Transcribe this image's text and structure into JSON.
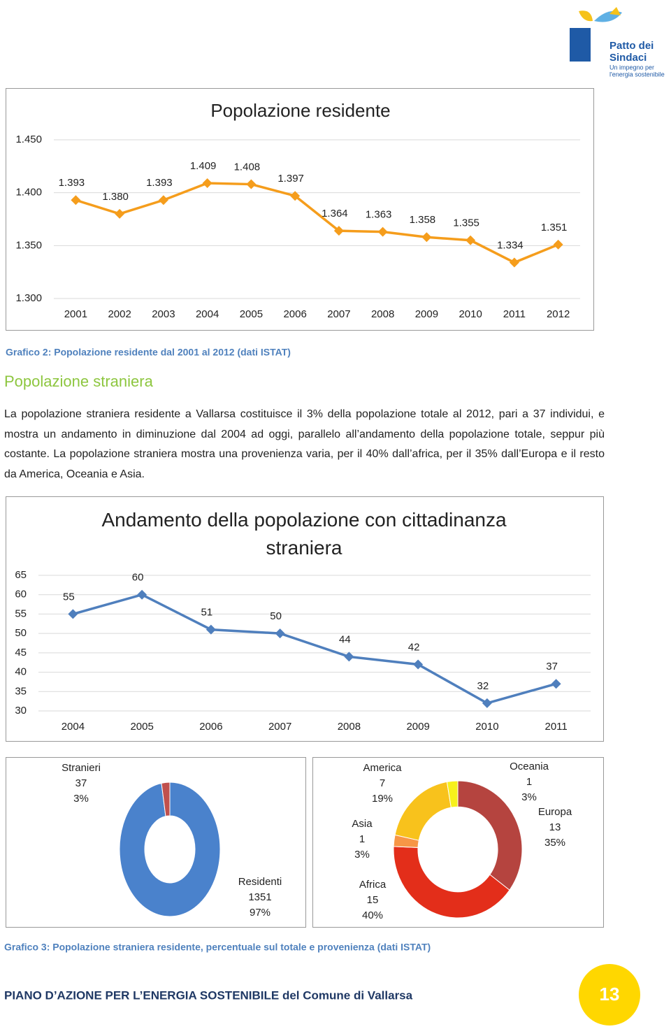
{
  "logo": {
    "name_line1": "Patto dei",
    "name_line2": "Sindaci",
    "tagline_line1": "Un impegno per",
    "tagline_line2": "l'energia sostenibile"
  },
  "caption_2": "Grafico 2: Popolazione residente dal 2001 al 2012 (dati ISTAT)",
  "section_title": "Popolazione straniera",
  "paragraph": "La popolazione straniera residente a Vallarsa costituisce il 3% della popolazione totale al 2012, pari a 37 individui, e mostra un andamento in diminuzione dal 2004 ad oggi, parallelo all’andamento della popolazione totale, seppur più costante. La popolazione straniera mostra una provenienza varia, per il 40% dall’africa, per il 35% dall’Europa e il resto da America, Oceania e Asia.",
  "caption_3": "Grafico 3: Popolazione straniera residente, percentuale sul totale e provenienza (dati ISTAT)",
  "footer": {
    "text": "PIANO D’AZIONE PER L’ENERGIA SOSTENIBILE del Comune di Vallarsa",
    "page": "13"
  },
  "chart_data": [
    {
      "type": "line",
      "title": "Popolazione residente",
      "categories": [
        "2001",
        "2002",
        "2003",
        "2004",
        "2005",
        "2006",
        "2007",
        "2008",
        "2009",
        "2010",
        "2011",
        "2012"
      ],
      "values": [
        1393,
        1380,
        1393,
        1409,
        1408,
        1397,
        1364,
        1363,
        1358,
        1355,
        1334,
        1351
      ],
      "value_labels": [
        "1.393",
        "1.380",
        "1.393",
        "1.409",
        "1.408",
        "1.397",
        "1.364",
        "1.363",
        "1.358",
        "1.355",
        "1.334",
        "1.351"
      ],
      "color": "#f59d1c",
      "ylim": [
        1300,
        1450
      ],
      "yticks": [
        {
          "value": 1300,
          "label": "1.300"
        },
        {
          "value": 1350,
          "label": "1.350"
        },
        {
          "value": 1400,
          "label": "1.400"
        },
        {
          "value": 1450,
          "label": "1.450"
        }
      ],
      "grid": true
    },
    {
      "type": "line",
      "title": "Andamento della popolazione con cittadinanza straniera",
      "categories": [
        "2004",
        "2005",
        "2006",
        "2007",
        "2008",
        "2009",
        "2010",
        "2011"
      ],
      "values": [
        55,
        60,
        51,
        50,
        44,
        42,
        32,
        37
      ],
      "color": "#4f7fbd",
      "ylim": [
        30,
        65
      ],
      "yticks": [
        30,
        35,
        40,
        45,
        50,
        55,
        60,
        65
      ],
      "grid": true
    },
    {
      "type": "donut",
      "categories": [
        "Residenti",
        "Stranieri"
      ],
      "values": [
        1351,
        37
      ],
      "percent_labels": [
        "97%",
        "3%"
      ],
      "colors": [
        "#4a82cc",
        "#c0504d"
      ]
    },
    {
      "type": "donut",
      "categories": [
        "Europa",
        "Africa",
        "Asia",
        "America",
        "Oceania"
      ],
      "values": [
        13,
        15,
        1,
        7,
        1
      ],
      "percent_labels": [
        "35%",
        "40%",
        "3%",
        "19%",
        "3%"
      ],
      "colors": [
        "#b5443f",
        "#e32e1a",
        "#f79646",
        "#f8c21c",
        "#f7f01c"
      ]
    }
  ]
}
